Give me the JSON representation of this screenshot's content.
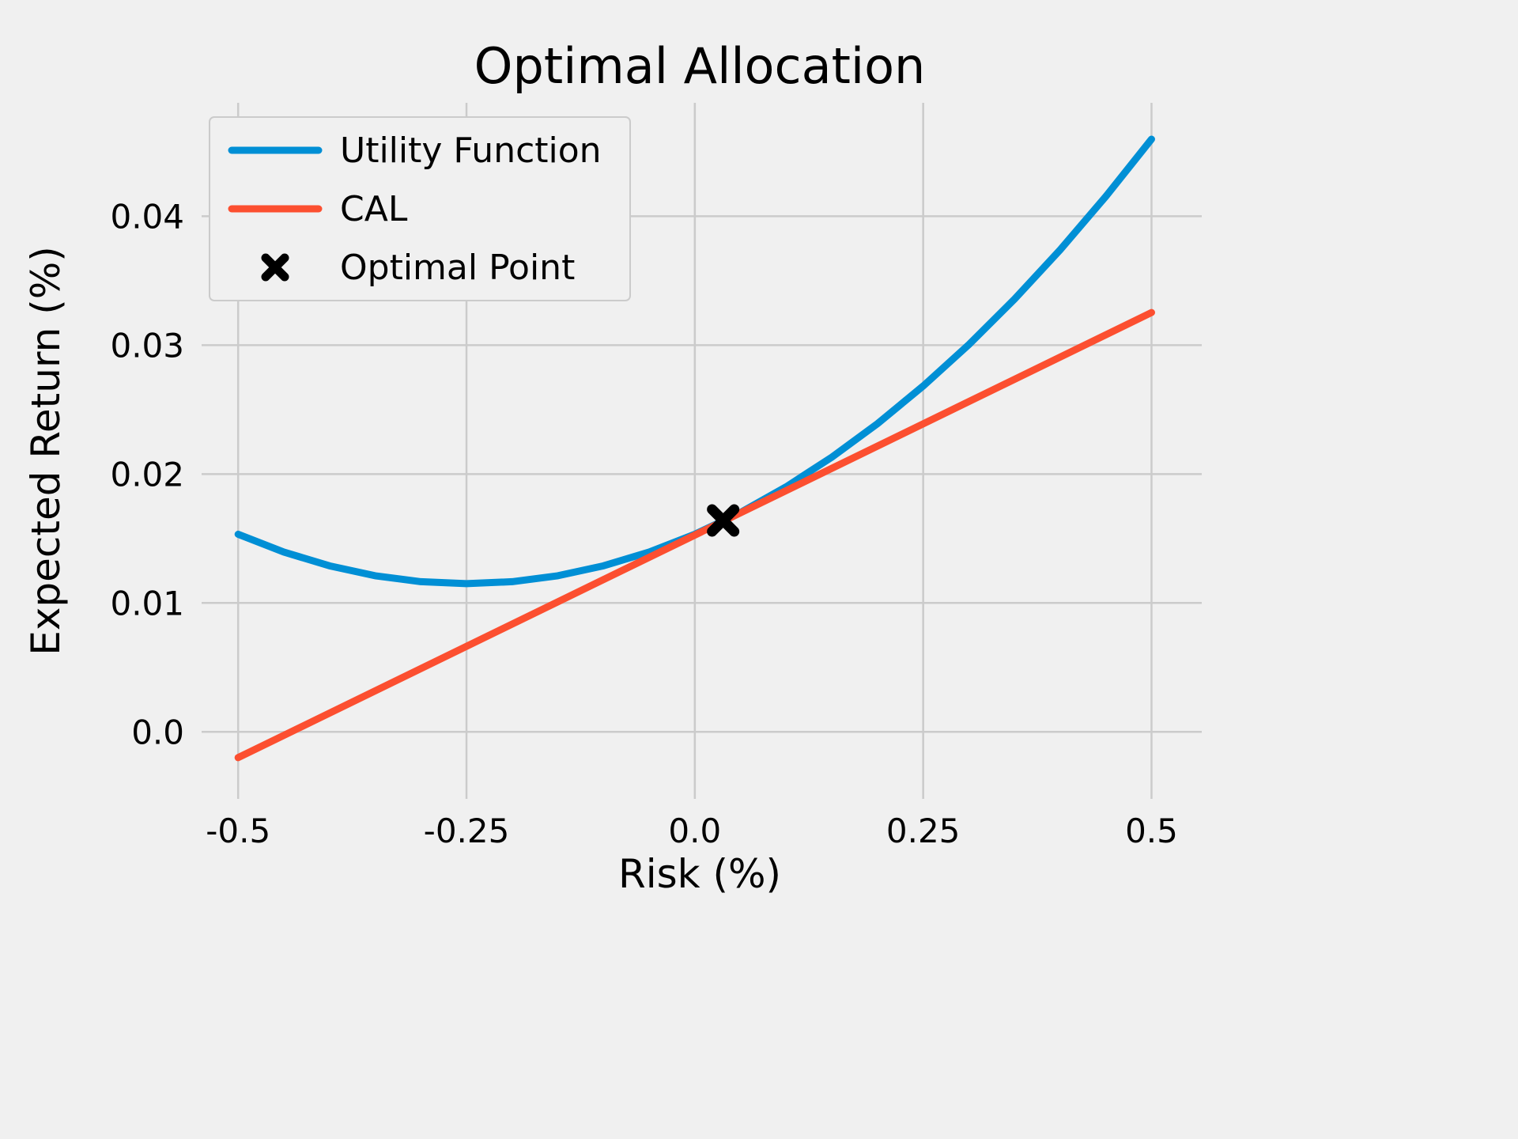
{
  "chart_data": {
    "type": "line",
    "title": "Optimal Allocation",
    "xlabel": "Risk (%)",
    "ylabel": "Expected Return (%)",
    "xlim": [
      -0.54,
      0.555
    ],
    "ylim": [
      -0.0052,
      0.0488
    ],
    "grid": true,
    "background_color": "#f0f0f0",
    "grid_color": "#cbcbcb",
    "xticks": {
      "values": [
        -0.5,
        -0.25,
        0.0,
        0.25,
        0.5
      ],
      "labels": [
        "-0.5",
        "-0.25",
        "0.0",
        "0.25",
        "0.5"
      ]
    },
    "yticks": {
      "values": [
        0.0,
        0.01,
        0.02,
        0.03,
        0.04
      ],
      "labels": [
        "0.0",
        "0.01",
        "0.02",
        "0.03",
        "0.04"
      ]
    },
    "series": [
      {
        "id": "utility",
        "name": "Utility Function",
        "type": "line",
        "color": "#008fd5",
        "x": [
          -0.5,
          -0.45,
          -0.4,
          -0.35,
          -0.3,
          -0.25,
          -0.2,
          -0.15,
          -0.1,
          -0.05,
          0.0,
          0.05,
          0.1,
          0.15,
          0.2,
          0.25,
          0.3,
          0.35,
          0.4,
          0.45,
          0.5
        ],
        "y": [
          0.01533,
          0.01395,
          0.01288,
          0.01211,
          0.01165,
          0.0115,
          0.01165,
          0.01211,
          0.01288,
          0.01395,
          0.01533,
          0.01702,
          0.01901,
          0.02131,
          0.02391,
          0.02683,
          0.03004,
          0.03357,
          0.0374,
          0.04154,
          0.04598
        ]
      },
      {
        "id": "cal",
        "name": "CAL",
        "type": "line",
        "color": "#fc4f30",
        "x": [
          -0.5,
          0.5
        ],
        "y": [
          -0.002,
          0.03253
        ]
      },
      {
        "id": "optimal",
        "name": "Optimal Point",
        "type": "marker",
        "color": "#000000",
        "x": [
          0.031
        ],
        "y": [
          0.0164
        ]
      }
    ],
    "legend": {
      "position": "upper left",
      "entries": [
        {
          "id": "utility",
          "label": "Utility Function",
          "type": "line",
          "color": "#008fd5"
        },
        {
          "id": "cal",
          "label": "CAL",
          "type": "line",
          "color": "#fc4f30"
        },
        {
          "id": "optimal",
          "label": "Optimal Point",
          "type": "marker",
          "color": "#000000"
        }
      ]
    }
  }
}
